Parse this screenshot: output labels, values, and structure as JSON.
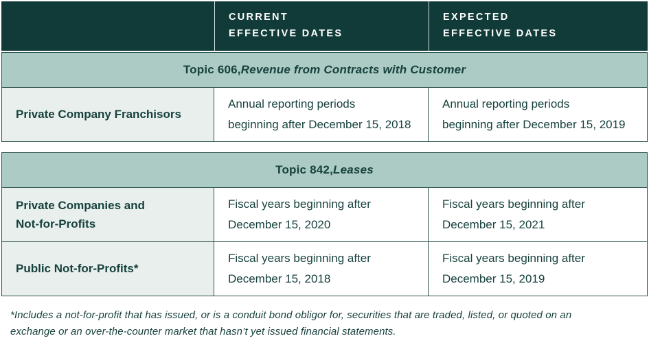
{
  "colors": {
    "header_bg": "#113b39",
    "banner_bg": "#abcbc4",
    "label_bg": "#e8efec",
    "text": "#17413d",
    "border": "#2b524d",
    "header_text": "#ffffff"
  },
  "header": {
    "columns": [
      "",
      "CURRENT\nEFFECTIVE DATES",
      "EXPECTED\nEFFECTIVE DATES"
    ]
  },
  "sections": [
    {
      "topic_prefix": "Topic 606, ",
      "topic_title_italic": "Revenue from Contracts with Customer",
      "rows": [
        {
          "label": "Private Company Franchisors",
          "current": "Annual reporting periods\nbeginning after December 15, 2018",
          "expected": "Annual reporting periods\nbeginning after December 15, 2019"
        }
      ]
    },
    {
      "topic_prefix": "Topic 842, ",
      "topic_title_italic": "Leases",
      "rows": [
        {
          "label": "Private Companies and\nNot-for-Profits",
          "current": "Fiscal years beginning after\nDecember 15, 2020",
          "expected": "Fiscal years beginning after\nDecember 15, 2021"
        },
        {
          "label": "Public Not-for-Profits*",
          "current": "Fiscal years beginning after\nDecember 15, 2018",
          "expected": "Fiscal years beginning after\nDecember 15, 2019"
        }
      ]
    }
  ],
  "footnote": "*Includes a not-for-profit that has issued, or is a conduit bond obligor for, securities that are traded, listed, or quoted on an\nexchange or an over-the-counter market that hasn’t yet issued financial statements."
}
